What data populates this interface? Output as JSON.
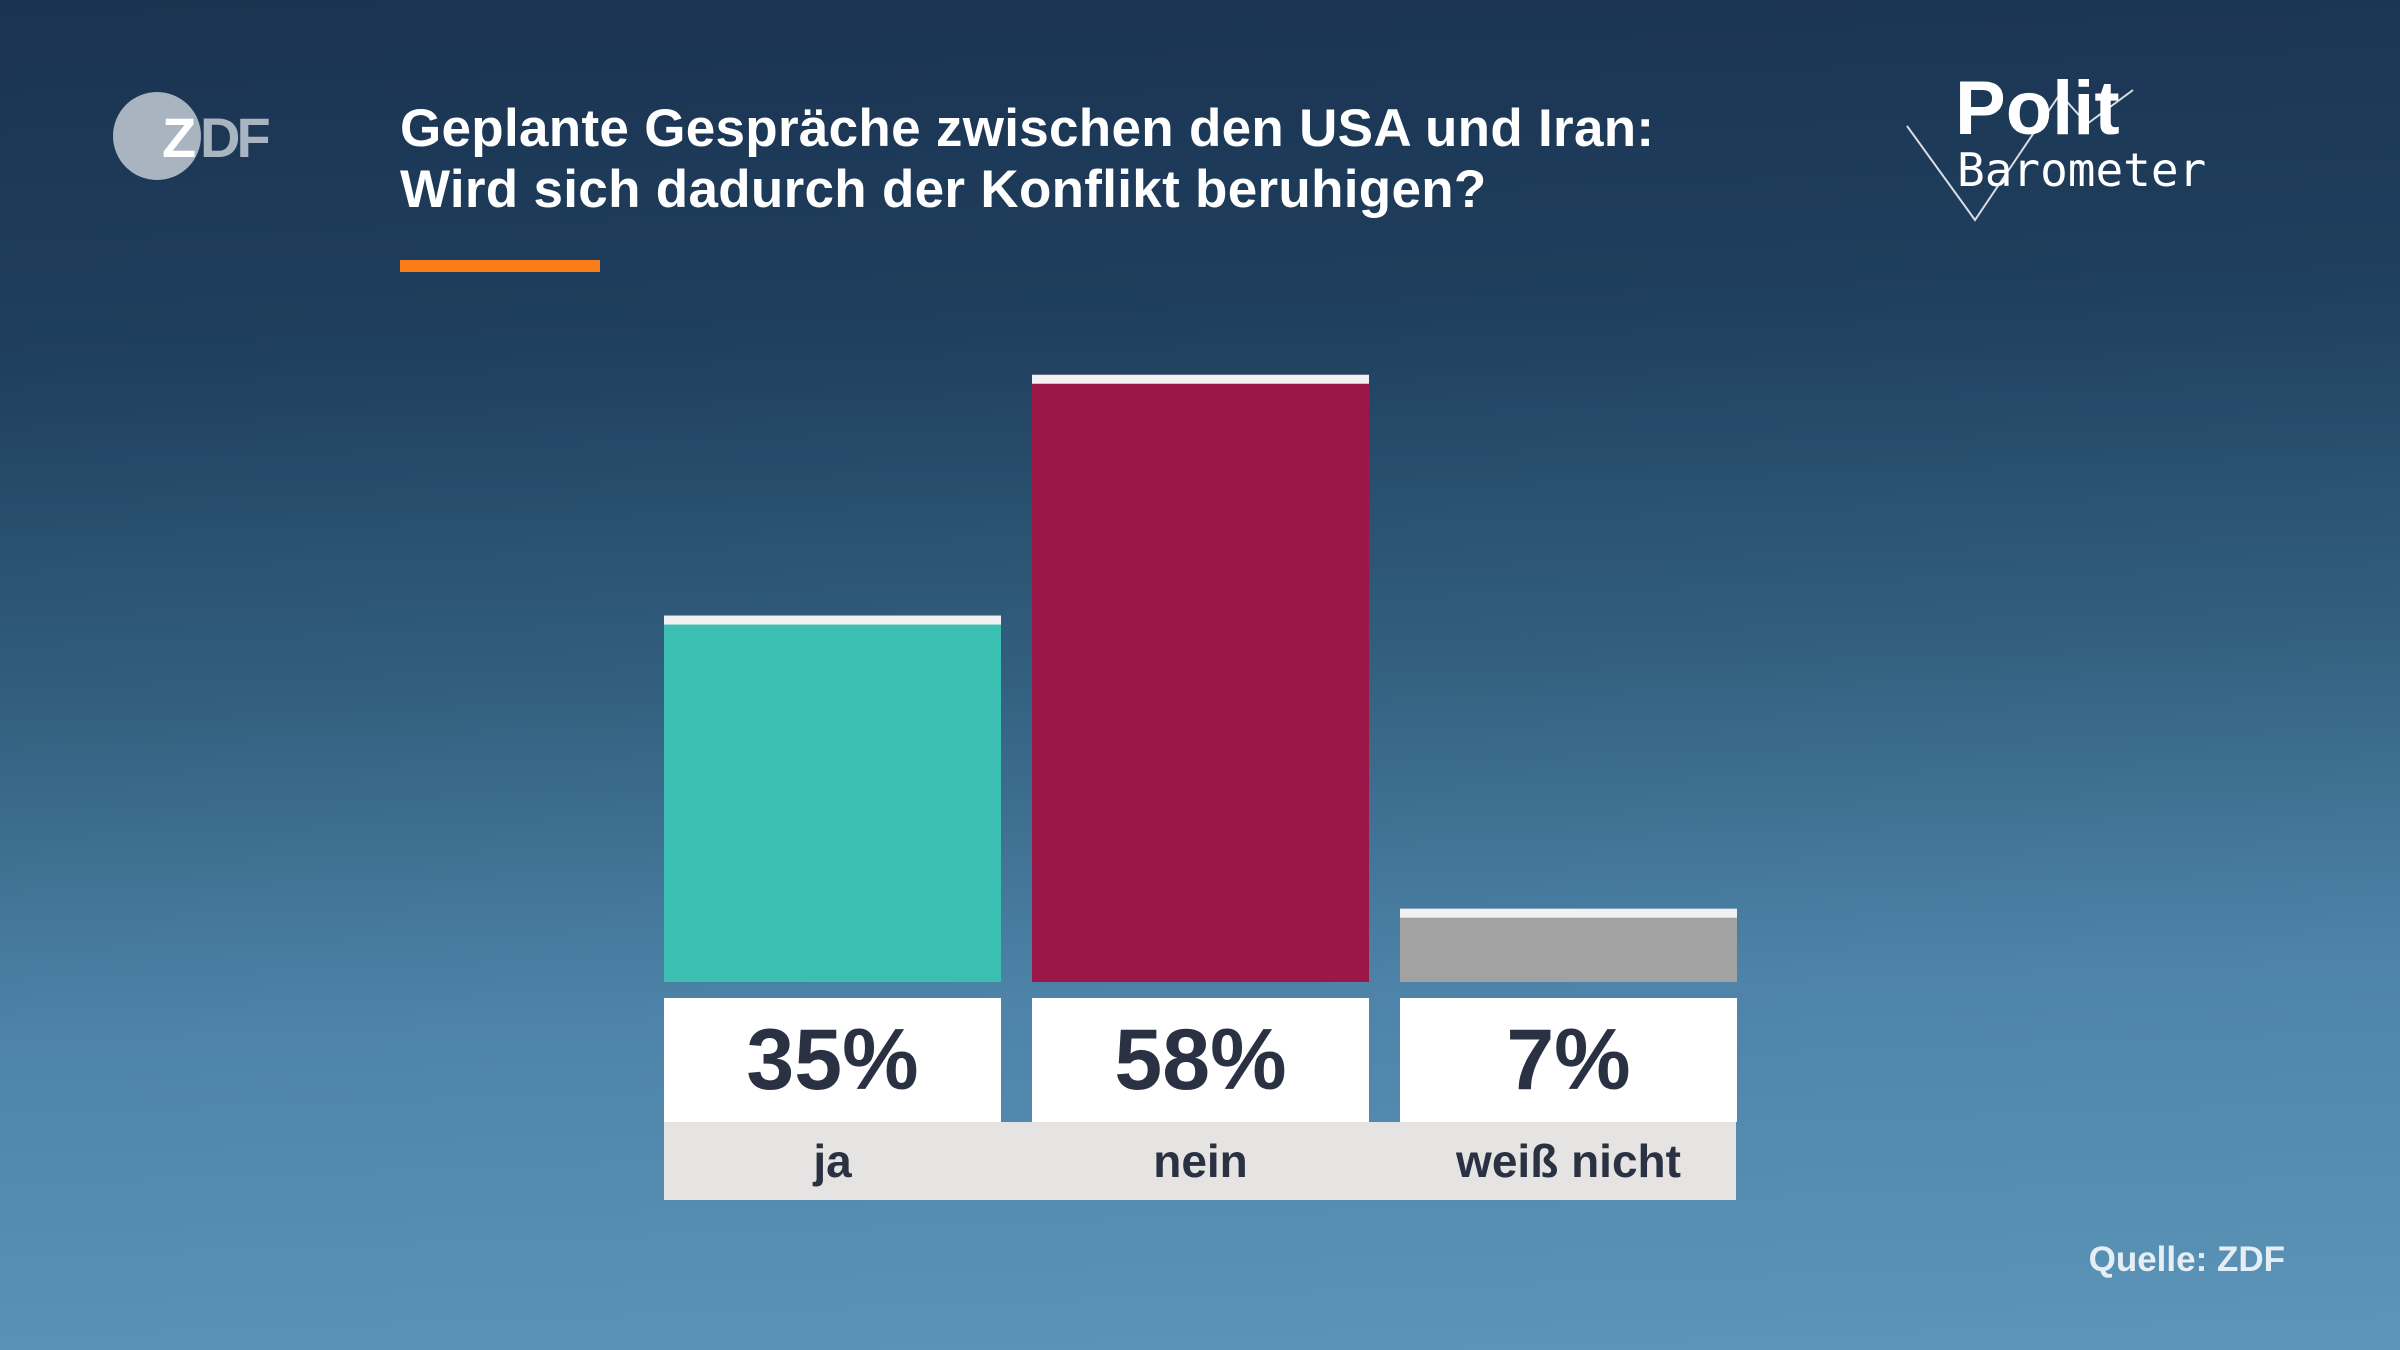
{
  "logo": {
    "text": "ZDF"
  },
  "brand": {
    "line1": "Polit",
    "line2": "Barometer"
  },
  "title": {
    "line1": "Geplante Gespräche zwischen den USA und Iran:",
    "line2": "Wird sich dadurch der Konflikt beruhigen?"
  },
  "colors": {
    "accent": "#fa7d19",
    "ja": "#3bbfb2",
    "nein": "#9a1747",
    "weiss_nicht": "#a2a2a2",
    "text": "#2a3142"
  },
  "chart_data": {
    "type": "bar",
    "categories": [
      "ja",
      "nein",
      "weiß nicht"
    ],
    "values": [
      35,
      58,
      7
    ],
    "value_labels": [
      "35%",
      "58%",
      "7%"
    ],
    "unit": "%",
    "colors": [
      "#3bbfb2",
      "#9a1747",
      "#a2a2a2"
    ],
    "grid": false,
    "legend": "none"
  },
  "source": "Quelle: ZDF"
}
